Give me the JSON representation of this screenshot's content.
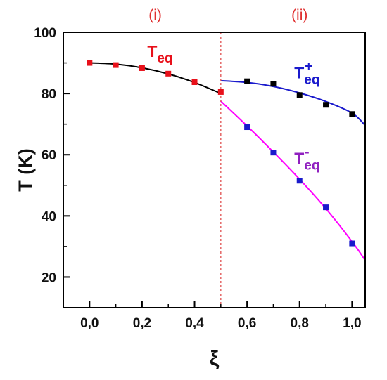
{
  "chart_data": {
    "type": "scatter",
    "title": "",
    "xlabel": "ξ",
    "ylabel": "T (K)",
    "xlim": [
      -0.1,
      1.05
    ],
    "ylim": [
      10,
      100
    ],
    "xticks": [
      0.0,
      0.2,
      0.4,
      0.6,
      0.8,
      1.0
    ],
    "xtick_labels": [
      "0,0",
      "0,2",
      "0,4",
      "0,6",
      "0,8",
      "1,0"
    ],
    "yticks": [
      20,
      40,
      60,
      80,
      100
    ],
    "ytick_labels": [
      "20",
      "40",
      "60",
      "80",
      "100"
    ],
    "grid": false,
    "divider": {
      "x": 0.5,
      "color": "#e05050",
      "style": "dashed"
    },
    "regions": [
      {
        "label": "(i)",
        "x": 0.25,
        "color": "#e03030"
      },
      {
        "label": "(ii)",
        "x": 0.8,
        "color": "#e03030"
      }
    ],
    "series": [
      {
        "label_main": "T",
        "label_sub": "eq",
        "label_sup": "",
        "color": "#e8101a",
        "fit_color": "#000000",
        "x": [
          0.0,
          0.1,
          0.2,
          0.3,
          0.4,
          0.5
        ],
        "y": [
          90.0,
          89.3,
          88.3,
          86.5,
          83.7,
          80.5
        ],
        "fit": {
          "x_start": 0.0,
          "x_end": 0.5,
          "points": [
            [
              0.0,
              90.0
            ],
            [
              0.1,
              89.6
            ],
            [
              0.2,
              88.4
            ],
            [
              0.3,
              86.4
            ],
            [
              0.4,
              83.6
            ],
            [
              0.5,
              80.0
            ]
          ]
        }
      },
      {
        "label_main": "T",
        "label_sub": "eq",
        "label_sup": "+",
        "color": "#000000",
        "fit_color": "#1a1acc",
        "x": [
          0.6,
          0.7,
          0.8,
          0.9,
          1.0
        ],
        "y": [
          84.0,
          83.2,
          79.5,
          76.3,
          73.3
        ],
        "fit": {
          "x_start": 0.5,
          "x_end": 1.05,
          "points": [
            [
              0.5,
              84.2
            ],
            [
              0.6,
              83.6
            ],
            [
              0.7,
              82.3
            ],
            [
              0.8,
              80.2
            ],
            [
              0.9,
              77.4
            ],
            [
              1.0,
              73.6
            ],
            [
              1.05,
              69.6
            ]
          ]
        }
      },
      {
        "label_main": "T",
        "label_sub": "eq",
        "label_sup": "-",
        "color": "#1a1acc",
        "fit_color": "#ff00ff",
        "x": [
          0.6,
          0.7,
          0.8,
          0.9,
          1.0
        ],
        "y": [
          69.0,
          60.7,
          51.5,
          42.8,
          31.0
        ],
        "fit": {
          "x_start": 0.5,
          "x_end": 1.05,
          "points": [
            [
              0.5,
              77.5
            ],
            [
              0.6,
              69.4
            ],
            [
              0.7,
              60.9
            ],
            [
              0.8,
              52.0
            ],
            [
              0.9,
              42.4
            ],
            [
              1.0,
              31.6
            ],
            [
              1.05,
              25.5
            ]
          ]
        }
      }
    ],
    "series_label_positions": [
      {
        "x": 0.22,
        "y": 92.0,
        "color": "#e8101a"
      },
      {
        "x": 0.78,
        "y": 85.0,
        "color": "#1a1acc"
      },
      {
        "x": 0.78,
        "y": 57.0,
        "color": "#9020c0"
      }
    ]
  }
}
